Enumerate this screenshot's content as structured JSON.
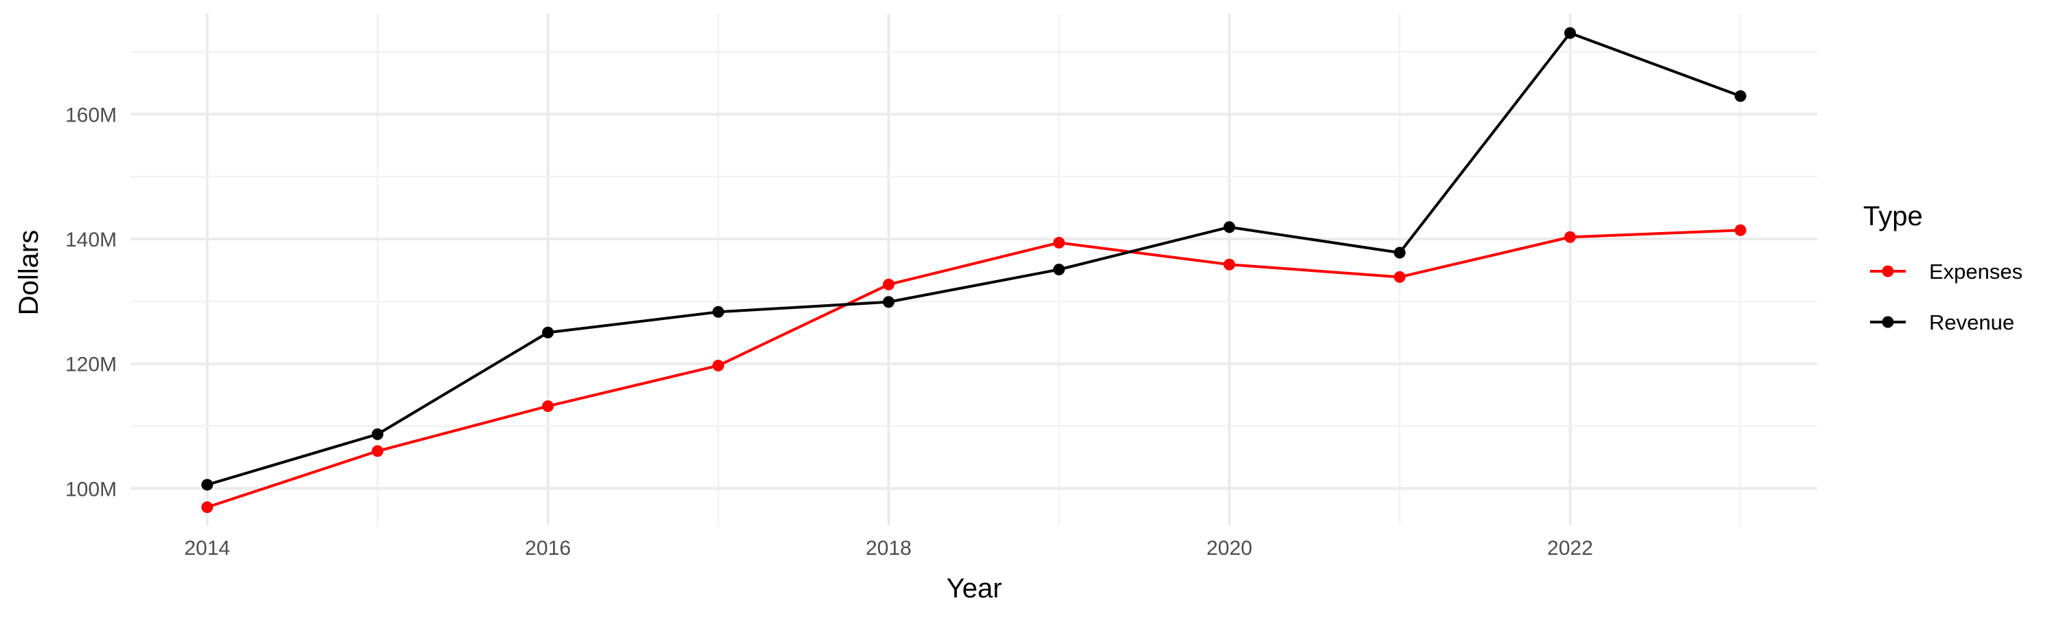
{
  "chart_data": {
    "type": "line",
    "title": "",
    "xlabel": "Year",
    "ylabel": "Dollars",
    "x": [
      2014,
      2015,
      2016,
      2017,
      2018,
      2019,
      2020,
      2021,
      2022,
      2023
    ],
    "x_ticks": [
      2014,
      2016,
      2018,
      2020,
      2022
    ],
    "x_tick_labels": [
      "2014",
      "2016",
      "2018",
      "2020",
      "2022"
    ],
    "xlim": [
      2013.55,
      2023.45
    ],
    "y_ticks": [
      100000000,
      120000000,
      140000000,
      160000000
    ],
    "y_tick_labels": [
      "100M",
      "120M",
      "140M",
      "160M"
    ],
    "ylim": [
      94100000,
      176100000
    ],
    "grid": true,
    "legend": {
      "title": "Type",
      "position": "right"
    },
    "series": [
      {
        "name": "Expenses",
        "color": "#ff0000",
        "values": [
          97000000,
          106000000,
          113200000,
          119700000,
          132700000,
          139400000,
          135900000,
          133900000,
          140300000,
          141400000
        ]
      },
      {
        "name": "Revenue",
        "color": "#000000",
        "values": [
          100600000,
          108700000,
          125000000,
          128300000,
          129900000,
          135100000,
          141900000,
          137800000,
          173000000,
          162900000
        ]
      }
    ]
  }
}
